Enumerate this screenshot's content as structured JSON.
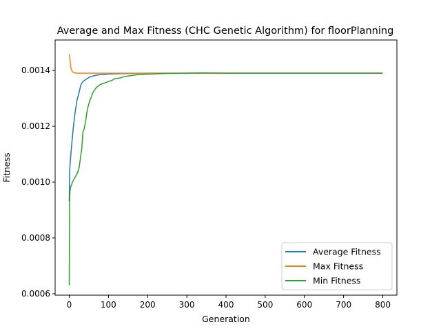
{
  "chart_data": {
    "type": "line",
    "title": "Average and Max Fitness (CHC Genetic Algorithm) for floorPlanning",
    "xlabel": "Generation",
    "ylabel": "Fitness",
    "xlim": [
      -36,
      836
    ],
    "ylim": [
      0.000595,
      0.001509
    ],
    "xticks": [
      0,
      100,
      200,
      300,
      400,
      500,
      600,
      700,
      800
    ],
    "xtick_labels": [
      "0",
      "100",
      "200",
      "300",
      "400",
      "500",
      "600",
      "700",
      "800"
    ],
    "yticks": [
      0.0006,
      0.0008,
      0.001,
      0.0012,
      0.0014
    ],
    "ytick_labels": [
      "0.0006",
      "0.0008",
      "0.0010",
      "0.0012",
      "0.0014"
    ],
    "grid": false,
    "legend_position": "lower-right",
    "series": [
      {
        "name": "Average Fitness",
        "color": "#1f77b4",
        "x": [
          0,
          1,
          3,
          6,
          10,
          15,
          20,
          25,
          30,
          35,
          40,
          50,
          60,
          70,
          80,
          100,
          120,
          150,
          200,
          250,
          300,
          400,
          500,
          600,
          700,
          800
        ],
        "y": [
          0.00093,
          0.00104,
          0.00108,
          0.00113,
          0.00119,
          0.00125,
          0.001295,
          0.00132,
          0.00135,
          0.00136,
          0.001365,
          0.001375,
          0.00138,
          0.001383,
          0.001385,
          0.001387,
          0.001388,
          0.001389,
          0.00139,
          0.00139,
          0.00139,
          0.00139,
          0.00139,
          0.00139,
          0.00139,
          0.00139
        ]
      },
      {
        "name": "Max Fitness",
        "color": "#ff7f0e",
        "x": [
          0,
          2,
          4,
          7,
          10,
          15,
          20,
          30,
          50,
          100,
          200,
          300,
          400,
          500,
          600,
          700,
          800
        ],
        "y": [
          0.001458,
          0.00144,
          0.00141,
          0.001398,
          0.001393,
          0.001391,
          0.00139,
          0.00139,
          0.00139,
          0.00139,
          0.00139,
          0.00139,
          0.00139,
          0.00139,
          0.00139,
          0.00139,
          0.00139
        ],
        "ignore_y_placeholder": null
      },
      {
        "name": "Min Fitness",
        "color": "#2ca02c",
        "x": [
          0,
          1,
          2,
          4,
          6,
          8,
          12,
          16,
          20,
          25,
          28,
          32,
          35,
          38,
          42,
          45,
          48,
          52,
          55,
          60,
          65,
          70,
          75,
          80,
          90,
          100,
          110,
          115,
          130,
          140,
          150,
          170,
          190,
          210,
          240,
          300,
          340,
          400,
          500,
          600,
          700,
          800
        ],
        "y": [
          0.00063,
          0.00093,
          0.00097,
          0.000985,
          0.00099,
          0.001,
          0.00101,
          0.00102,
          0.00103,
          0.00105,
          0.00108,
          0.00112,
          0.00118,
          0.00119,
          0.00122,
          0.00125,
          0.00127,
          0.00129,
          0.0013,
          0.00132,
          0.00133,
          0.00134,
          0.001345,
          0.00135,
          0.001355,
          0.00136,
          0.001365,
          0.00137,
          0.001373,
          0.001378,
          0.00138,
          0.001384,
          0.001386,
          0.001387,
          0.001389,
          0.00139,
          0.001391,
          0.00139,
          0.00139,
          0.00139,
          0.00139,
          0.00139
        ]
      }
    ]
  }
}
